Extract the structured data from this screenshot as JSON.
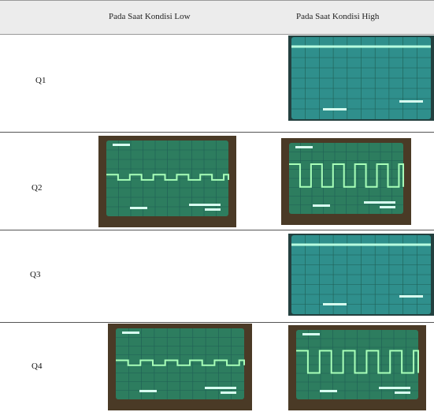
{
  "table": {
    "columns": [
      "Pada Saat Kondisi Low",
      "Pada Saat Kondisi High"
    ],
    "rows": [
      {
        "label": "Q1"
      },
      {
        "label": "Q2"
      },
      {
        "label": "Q3"
      },
      {
        "label": "Q4"
      }
    ]
  }
}
